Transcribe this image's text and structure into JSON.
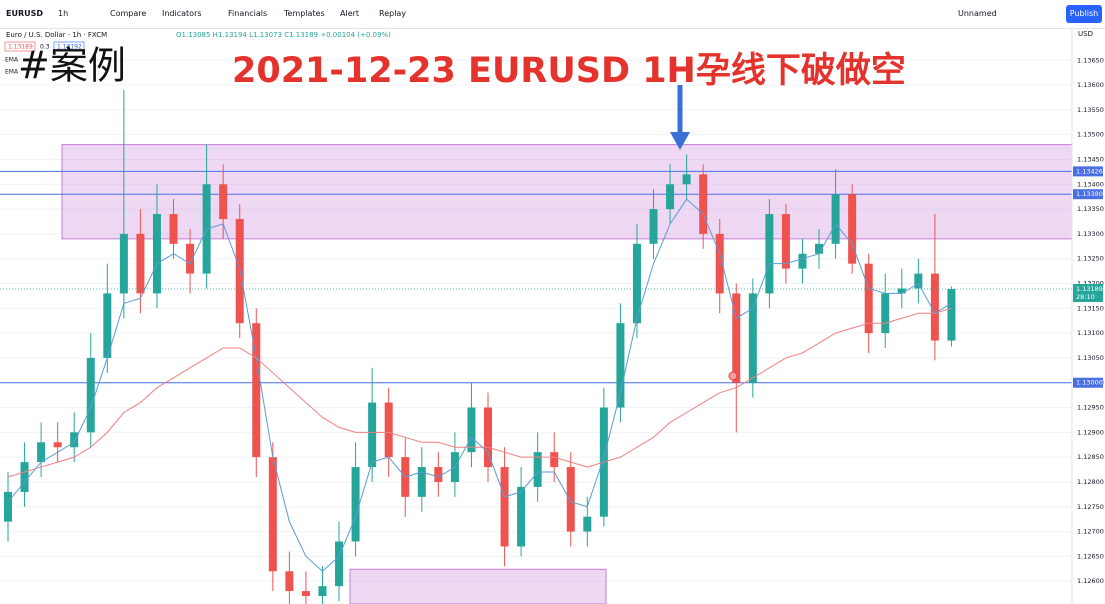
{
  "toolbar": {
    "symbol": "EURUSD",
    "interval": "1h",
    "items": [
      "Compare",
      "Indicators",
      "Financials",
      "Templates",
      "Alert",
      "Replay"
    ],
    "layout_name": "Unnamed",
    "publish": "Publish",
    "currency": "USD"
  },
  "legend": {
    "series_title": "Euro / U.S. Dollar · 1h · FXCM",
    "ohlc": "O1.13085 H1.13194 L1.13073 C1.13189 +0.00104 (+0.09%)",
    "bid": "1.13189",
    "spread": "0.3",
    "ask": "1.13192",
    "ema_labels": [
      "EMA",
      "EMA"
    ]
  },
  "overlay": {
    "tag": "#案例",
    "headline": "2021-12-23 EURUSD 1H孕线下破做空"
  },
  "chart_data": {
    "type": "candlestick",
    "up_color": "#26a69a",
    "down_color": "#ef5350",
    "open": [
      1.1272,
      1.1278,
      1.1284,
      1.1288,
      1.1287,
      1.129,
      1.1305,
      1.1318,
      1.133,
      1.1318,
      1.1334,
      1.1328,
      1.1322,
      1.134,
      1.1333,
      1.1312,
      1.1285,
      1.1262,
      1.1258,
      1.1257,
      1.1259,
      1.1268,
      1.1283,
      1.1296,
      1.1285,
      1.1277,
      1.1283,
      1.128,
      1.1286,
      1.1295,
      1.1283,
      1.1267,
      1.1279,
      1.1286,
      1.1283,
      1.127,
      1.1273,
      1.1295,
      1.1312,
      1.1328,
      1.1335,
      1.134,
      1.1342,
      1.133,
      1.1318,
      1.13,
      1.1318,
      1.1334,
      1.1323,
      1.1326,
      1.1328,
      1.1338,
      1.1324,
      1.131,
      1.1318,
      1.1319,
      1.1322,
      1.13085
    ],
    "high": [
      1.1282,
      1.1288,
      1.1292,
      1.1292,
      1.1294,
      1.131,
      1.1324,
      1.1359,
      1.1335,
      1.134,
      1.1337,
      1.1331,
      1.1348,
      1.1344,
      1.1336,
      1.1315,
      1.1288,
      1.1266,
      1.1262,
      1.1263,
      1.1272,
      1.1288,
      1.1303,
      1.1299,
      1.1289,
      1.1287,
      1.1286,
      1.129,
      1.13,
      1.1298,
      1.1287,
      1.1283,
      1.129,
      1.129,
      1.1286,
      1.1277,
      1.1299,
      1.1316,
      1.1332,
      1.1339,
      1.1344,
      1.1346,
      1.1344,
      1.1333,
      1.132,
      1.1321,
      1.1337,
      1.1336,
      1.1329,
      1.1331,
      1.1343,
      1.134,
      1.1326,
      1.1322,
      1.1323,
      1.1325,
      1.1334,
      1.13194
    ],
    "low": [
      1.1268,
      1.1275,
      1.1281,
      1.1284,
      1.1284,
      1.1287,
      1.1302,
      1.1313,
      1.1314,
      1.1315,
      1.1325,
      1.1318,
      1.1319,
      1.1329,
      1.1309,
      1.1281,
      1.1258,
      1.1254,
      1.1254,
      1.1254,
      1.1256,
      1.1265,
      1.128,
      1.1281,
      1.1273,
      1.1274,
      1.1277,
      1.1277,
      1.1283,
      1.128,
      1.1263,
      1.1265,
      1.1276,
      1.128,
      1.1267,
      1.1267,
      1.1271,
      1.1292,
      1.1309,
      1.1325,
      1.1332,
      1.1337,
      1.1327,
      1.1314,
      1.129,
      1.1297,
      1.1315,
      1.132,
      1.132,
      1.1323,
      1.1325,
      1.1322,
      1.1306,
      1.1307,
      1.1315,
      1.1316,
      1.13045,
      1.13073
    ],
    "close": [
      1.1278,
      1.1284,
      1.1288,
      1.1287,
      1.129,
      1.1305,
      1.1318,
      1.133,
      1.1318,
      1.1334,
      1.1328,
      1.1322,
      1.134,
      1.1333,
      1.1312,
      1.1285,
      1.1262,
      1.1258,
      1.1257,
      1.1259,
      1.1268,
      1.1283,
      1.1296,
      1.1285,
      1.1277,
      1.1283,
      1.128,
      1.1286,
      1.1295,
      1.1283,
      1.1267,
      1.1279,
      1.1286,
      1.1283,
      1.127,
      1.1273,
      1.1295,
      1.1312,
      1.1328,
      1.1335,
      1.134,
      1.1342,
      1.133,
      1.1318,
      1.13,
      1.1318,
      1.1334,
      1.1323,
      1.1326,
      1.1328,
      1.1338,
      1.1324,
      1.131,
      1.1318,
      1.1319,
      1.1322,
      1.13085,
      1.13189
    ],
    "ema_fast": {
      "color": "#5b9bd5",
      "values": [
        1.1276,
        1.128,
        1.1284,
        1.1286,
        1.1288,
        1.1295,
        1.1305,
        1.1316,
        1.1317,
        1.1324,
        1.1326,
        1.1324,
        1.1331,
        1.1332,
        1.1323,
        1.1305,
        1.1285,
        1.1272,
        1.1265,
        1.1262,
        1.1265,
        1.1273,
        1.1284,
        1.1285,
        1.1281,
        1.1282,
        1.1281,
        1.1283,
        1.1289,
        1.1286,
        1.1277,
        1.1278,
        1.1282,
        1.1282,
        1.1276,
        1.1275,
        1.1285,
        1.1298,
        1.1313,
        1.1324,
        1.1332,
        1.1337,
        1.1334,
        1.1326,
        1.1313,
        1.1315,
        1.1324,
        1.1324,
        1.1325,
        1.1326,
        1.1332,
        1.1328,
        1.1319,
        1.1318,
        1.1318,
        1.132,
        1.1314,
        1.1316
      ]
    },
    "ema_slow": {
      "color": "#f08080",
      "values": [
        1.1281,
        1.1282,
        1.1283,
        1.1284,
        1.1285,
        1.1287,
        1.129,
        1.1294,
        1.1296,
        1.1299,
        1.1301,
        1.1303,
        1.1305,
        1.1307,
        1.1307,
        1.1305,
        1.1302,
        1.1299,
        1.1296,
        1.1293,
        1.1291,
        1.129,
        1.129,
        1.129,
        1.1289,
        1.1288,
        1.1288,
        1.1287,
        1.1287,
        1.1287,
        1.1286,
        1.1285,
        1.1285,
        1.1285,
        1.1284,
        1.1283,
        1.1284,
        1.1285,
        1.1287,
        1.1289,
        1.1292,
        1.1294,
        1.1296,
        1.1298,
        1.1299,
        1.1301,
        1.1303,
        1.1305,
        1.1306,
        1.1308,
        1.131,
        1.1311,
        1.1312,
        1.1312,
        1.1313,
        1.1314,
        1.1314,
        1.1315
      ]
    },
    "ylim": [
      1.12554,
      1.13713
    ],
    "yticks": [
      {
        "value": 1.126,
        "label": "1.12600"
      },
      {
        "value": 1.1265,
        "label": "1.12650"
      },
      {
        "value": 1.127,
        "label": "1.12700"
      },
      {
        "value": 1.1275,
        "label": "1.12750"
      },
      {
        "value": 1.128,
        "label": "1.12800"
      },
      {
        "value": 1.1285,
        "label": "1.12850"
      },
      {
        "value": 1.129,
        "label": "1.12900"
      },
      {
        "value": 1.1295,
        "label": "1.12950"
      },
      {
        "value": 1.13,
        "label": "1.13000"
      },
      {
        "value": 1.1305,
        "label": "1.13050"
      },
      {
        "value": 1.131,
        "label": "1.13100"
      },
      {
        "value": 1.1315,
        "label": "1.13150"
      },
      {
        "value": 1.132,
        "label": "1.13200"
      },
      {
        "value": 1.1325,
        "label": "1.13250"
      },
      {
        "value": 1.133,
        "label": "1.13300"
      },
      {
        "value": 1.1335,
        "label": "1.13350"
      },
      {
        "value": 1.134,
        "label": "1.13400"
      },
      {
        "value": 1.1345,
        "label": "1.13450"
      },
      {
        "value": 1.135,
        "label": "1.13500"
      },
      {
        "value": 1.1355,
        "label": "1.13550"
      },
      {
        "value": 1.136,
        "label": "1.13600"
      },
      {
        "value": 1.1365,
        "label": "1.13650"
      }
    ],
    "levels": [
      {
        "value": 1.13426,
        "label": "1.13426"
      },
      {
        "value": 1.1338,
        "label": "1.13380"
      },
      {
        "value": 1.13,
        "label": "1.13000"
      }
    ],
    "level_color": "#4a6fe3",
    "zones": [
      {
        "top": 1.1348,
        "bottom": 1.1329
      },
      {
        "top": 1.12624,
        "bottom": 1.12554
      }
    ],
    "zone_color": "#c77dd6",
    "last_price": {
      "value": 1.13189,
      "label": "1.13189"
    },
    "countdown": "28:10"
  }
}
